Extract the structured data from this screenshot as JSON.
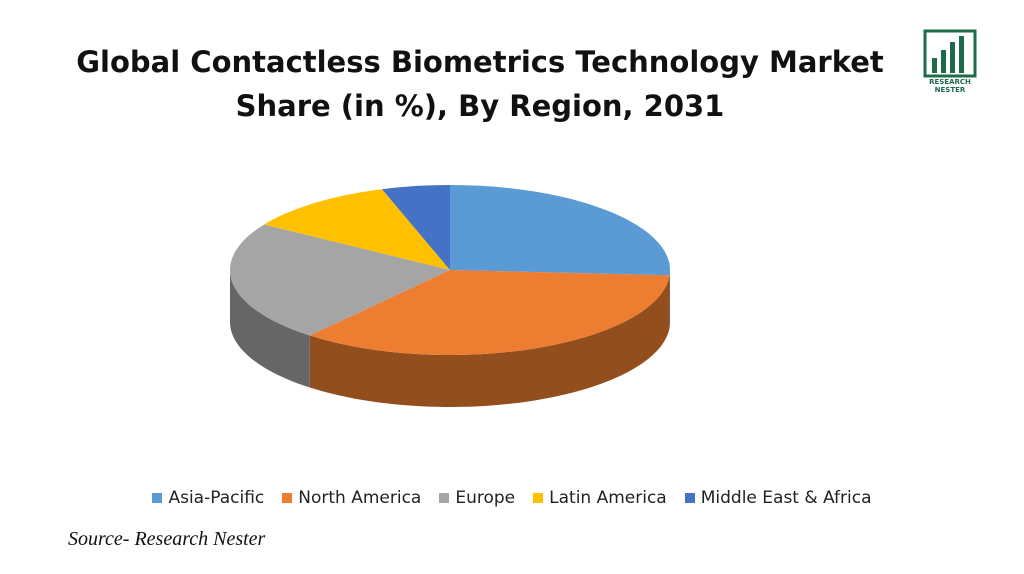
{
  "chart_data": {
    "type": "pie3d",
    "title": "Global Contactless Biometrics Technology Market Share (in %), By Region, 2031",
    "categories": [
      "Asia-Pacific",
      "North America",
      "Europe",
      "Latin America",
      "Middle East & Africa"
    ],
    "values": [
      26,
      35,
      23,
      11,
      5
    ],
    "colors": [
      "#5b9bd5",
      "#ed7d31",
      "#a5a5a5",
      "#ffc000",
      "#4472c4"
    ],
    "legend": "bottom",
    "source": "Source- Research Nester",
    "logo_text": [
      "RESEARCH",
      "NESTER"
    ]
  }
}
